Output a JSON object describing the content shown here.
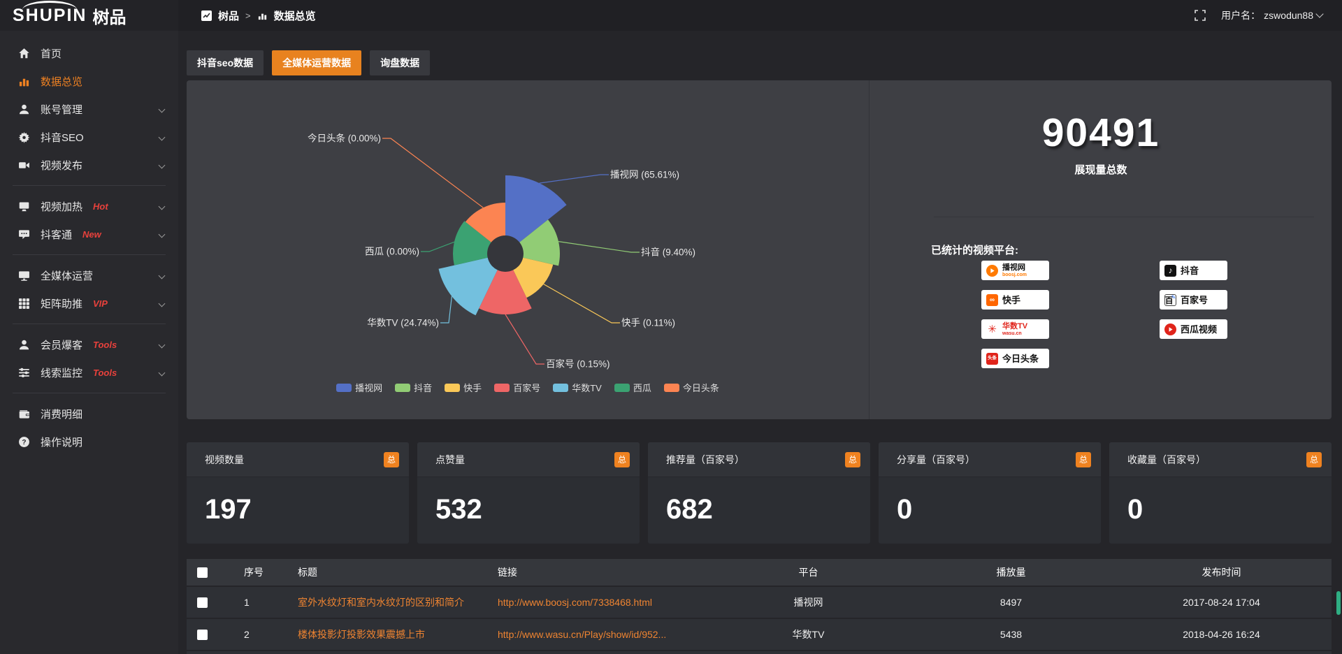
{
  "brand": {
    "logo_en": "SHUPIN",
    "logo_cn": "树品"
  },
  "header": {
    "breadcrumb": [
      {
        "label": "树品"
      },
      {
        "label": "数据总览"
      }
    ],
    "username_label": "用户名：",
    "username": "zswodun88"
  },
  "sidebar": {
    "items": [
      {
        "label": "首页",
        "icon": "home-icon",
        "chevron": false,
        "active": false,
        "badge": ""
      },
      {
        "label": "数据总览",
        "icon": "bar-chart-icon",
        "chevron": false,
        "active": true,
        "badge": ""
      },
      {
        "label": "账号管理",
        "icon": "user-icon",
        "chevron": true,
        "active": false,
        "badge": ""
      },
      {
        "label": "抖音SEO",
        "icon": "gear-icon",
        "chevron": true,
        "active": false,
        "badge": ""
      },
      {
        "label": "视频发布",
        "icon": "video-icon",
        "chevron": true,
        "active": false,
        "badge": ""
      },
      {
        "divider": true
      },
      {
        "label": "视频加热",
        "icon": "screen-icon",
        "chevron": true,
        "active": false,
        "badge": "Hot"
      },
      {
        "label": "抖客通",
        "icon": "chat-icon",
        "chevron": true,
        "active": false,
        "badge": "New"
      },
      {
        "divider": true
      },
      {
        "label": "全媒体运营",
        "icon": "monitor-icon",
        "chevron": true,
        "active": false,
        "badge": ""
      },
      {
        "label": "矩阵助推",
        "icon": "grid-icon",
        "chevron": true,
        "active": false,
        "badge": "VIP"
      },
      {
        "divider": true
      },
      {
        "label": "会员爆客",
        "icon": "member-icon",
        "chevron": true,
        "active": false,
        "badge": "Tools"
      },
      {
        "label": "线索监控",
        "icon": "sliders-icon",
        "chevron": true,
        "active": false,
        "badge": "Tools"
      },
      {
        "divider": true
      },
      {
        "label": "消费明细",
        "icon": "wallet-icon",
        "chevron": false,
        "active": false,
        "badge": ""
      },
      {
        "label": "操作说明",
        "icon": "help-icon",
        "chevron": false,
        "active": false,
        "badge": ""
      }
    ]
  },
  "tabs": [
    {
      "label": "抖音seo数据",
      "active": false
    },
    {
      "label": "全媒体运营数据",
      "active": true
    },
    {
      "label": "询盘数据",
      "active": false
    }
  ],
  "chart_data": {
    "type": "pie",
    "variant": "nightingale-rose",
    "legend_position": "bottom",
    "series": [
      {
        "name": "播视网",
        "value_pct": 65.61,
        "color": "#5470c6",
        "radius_px": 112
      },
      {
        "name": "抖音",
        "value_pct": 9.4,
        "color": "#91cc75",
        "radius_px": 78
      },
      {
        "name": "快手",
        "value_pct": 0.11,
        "color": "#fac858",
        "radius_px": 70
      },
      {
        "name": "百家号",
        "value_pct": 0.15,
        "color": "#ee6666",
        "radius_px": 87
      },
      {
        "name": "华数TV",
        "value_pct": 24.74,
        "color": "#73c0de",
        "radius_px": 98
      },
      {
        "name": "西瓜",
        "value_pct": 0.0,
        "color": "#3ba272",
        "radius_px": 75
      },
      {
        "name": "今日头条",
        "value_pct": 0.0,
        "color": "#fc8452",
        "radius_px": 73
      }
    ],
    "labels": [
      "播视网 (65.61%)",
      "抖音 (9.40%)",
      "快手 (0.11%)",
      "百家号 (0.15%)",
      "华数TV (24.74%)",
      "西瓜 (0.00%)",
      "今日头条 (0.00%)"
    ]
  },
  "summary": {
    "total_value": "90491",
    "total_label": "展现量总数",
    "platforms_label": "已统计的视频平台:",
    "platforms_left": [
      {
        "name": "播视网",
        "sub": "boosj.com",
        "icon": "boosj-logo"
      },
      {
        "name": "快手",
        "sub": "",
        "icon": "kuaishou-logo"
      },
      {
        "name": "华数TV",
        "sub": "wasu.cn",
        "icon": "wasu-logo"
      },
      {
        "name": "今日头条",
        "sub": "",
        "icon": "toutiao-logo"
      }
    ],
    "platforms_right": [
      {
        "name": "抖音",
        "sub": "",
        "icon": "douyin-logo"
      },
      {
        "name": "百家号",
        "sub": "",
        "icon": "baijiahao-logo"
      },
      {
        "name": "西瓜视频",
        "sub": "",
        "icon": "xigua-logo"
      }
    ]
  },
  "stat_cards": [
    {
      "label": "视频数量",
      "badge": "总",
      "value": "197"
    },
    {
      "label": "点赞量",
      "badge": "总",
      "value": "532"
    },
    {
      "label": "推荐量（百家号）",
      "badge": "总",
      "value": "682"
    },
    {
      "label": "分享量（百家号）",
      "badge": "总",
      "value": "0"
    },
    {
      "label": "收藏量（百家号）",
      "badge": "总",
      "value": "0"
    }
  ],
  "table": {
    "headers": [
      "序号",
      "标题",
      "链接",
      "平台",
      "播放量",
      "发布时间"
    ],
    "rows": [
      {
        "num": "1",
        "title": "室外水纹灯和室内水纹灯的区别和简介",
        "link": "http://www.boosj.com/7338468.html",
        "platform": "播视网",
        "plays": "8497",
        "time": "2017-08-24 17:04"
      },
      {
        "num": "2",
        "title": "楼体投影灯投影效果震撼上市",
        "link": "http://www.wasu.cn/Play/show/id/952...",
        "platform": "华数TV",
        "plays": "5438",
        "time": "2018-04-26 16:24"
      },
      {
        "num": "",
        "title": "",
        "link": "",
        "platform": "",
        "plays": "",
        "time": ""
      }
    ]
  },
  "colors": {
    "accent_orange": "#e8821f",
    "badge_red": "#e8413c",
    "panel_bg": "#3e3f44"
  }
}
